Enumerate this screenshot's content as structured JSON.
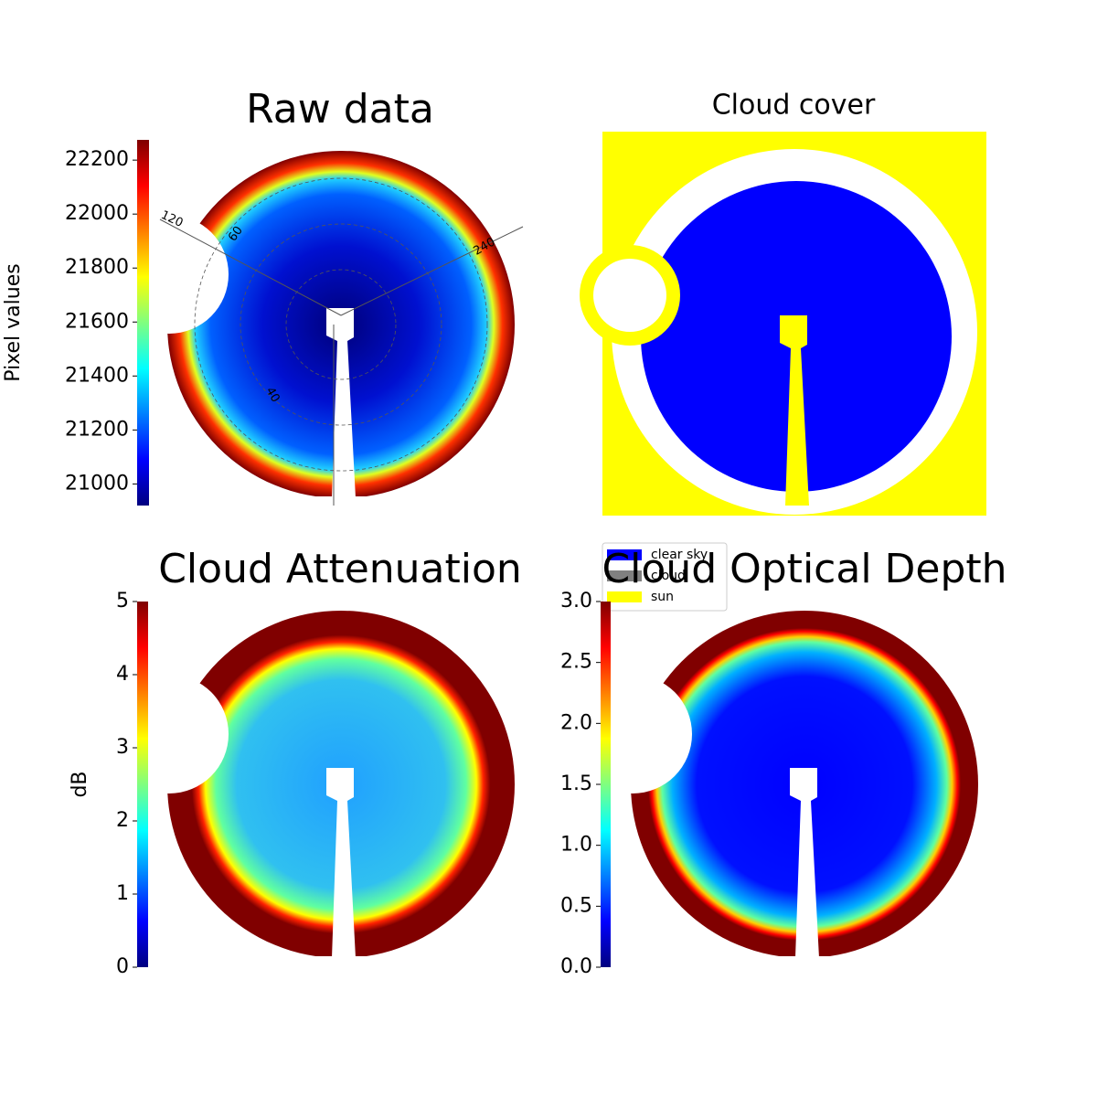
{
  "chart_data": [
    {
      "type": "image",
      "title": "Raw data",
      "colormap": "jet",
      "colorbar_label": "Pixel values",
      "ylim": [
        20920,
        22275
      ],
      "yticks": [
        21000,
        21200,
        21400,
        21600,
        21800,
        22000,
        22200
      ],
      "annotations": [
        "120",
        "60",
        "240",
        "40"
      ]
    },
    {
      "type": "image",
      "title": "Cloud cover",
      "categories": [
        "clear sky",
        "cloud",
        "sun"
      ],
      "colors": [
        "#0000ff",
        "#808080",
        "#ffff00"
      ]
    },
    {
      "type": "image",
      "title": "Cloud Attenuation",
      "colormap": "jet",
      "colorbar_label": "dB",
      "ylim": [
        0,
        5
      ],
      "yticks": [
        0,
        1,
        2,
        3,
        4,
        5
      ]
    },
    {
      "type": "image",
      "title": "Cloud Optical Depth",
      "colormap": "jet",
      "ylim": [
        0,
        3
      ],
      "yticks": [
        {
          "value": 0,
          "label": "0.0"
        },
        0.5,
        {
          "value": 1,
          "label": "1.0"
        },
        1.5,
        {
          "value": 2,
          "label": "2.0"
        },
        2.5,
        {
          "value": 3,
          "label": "3.0"
        }
      ]
    }
  ]
}
